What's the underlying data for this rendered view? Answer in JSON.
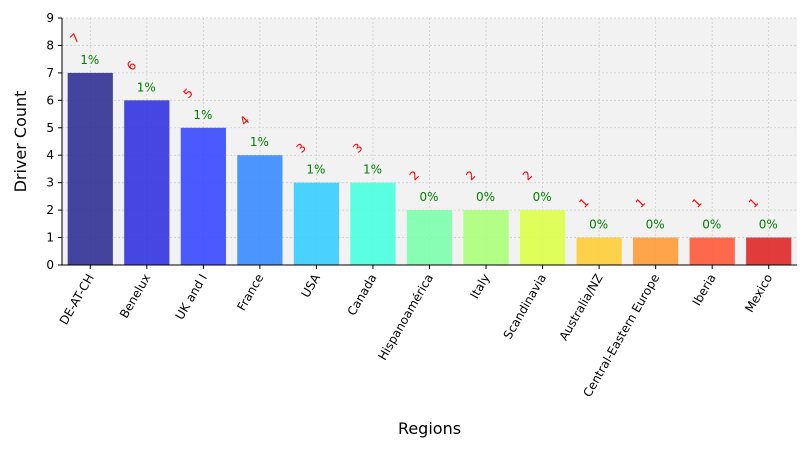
{
  "chart_data": {
    "type": "bar",
    "title": "",
    "xlabel": "Regions",
    "ylabel": "Driver Count",
    "ylim": [
      0,
      9
    ],
    "yticks": [
      0,
      1,
      2,
      3,
      4,
      5,
      6,
      7,
      8,
      9
    ],
    "grid": true,
    "legend": "none",
    "categories": [
      "DE-AT-CH",
      "Benelux",
      "UK and I",
      "France",
      "USA",
      "Canada",
      "Hispanoamérica",
      "Italy",
      "Scandinavia",
      "Australia/NZ",
      "Central-Eastern Europe",
      "Iberia",
      "Mexico"
    ],
    "values": [
      7,
      6,
      5,
      4,
      3,
      3,
      2,
      2,
      2,
      1,
      1,
      1,
      1
    ],
    "count_labels": [
      "7",
      "6",
      "5",
      "4",
      "3",
      "3",
      "2",
      "2",
      "2",
      "1",
      "1",
      "1",
      "1"
    ],
    "percent_labels": [
      "1%",
      "1%",
      "1%",
      "1%",
      "1%",
      "1%",
      "0%",
      "0%",
      "0%",
      "0%",
      "0%",
      "0%",
      "0%"
    ],
    "bar_colors": [
      "#2b2b93",
      "#2e2ee0",
      "#3344ff",
      "#3388ff",
      "#33ccff",
      "#44ffdd",
      "#77ffaa",
      "#aaff77",
      "#ddff44",
      "#ffcc33",
      "#ff9933",
      "#ff5533",
      "#dd2222"
    ],
    "colors": {
      "background": "#f2f2f2",
      "grid": "#cccccc",
      "count_label": "#ff0000",
      "percent_label": "#008000"
    }
  }
}
